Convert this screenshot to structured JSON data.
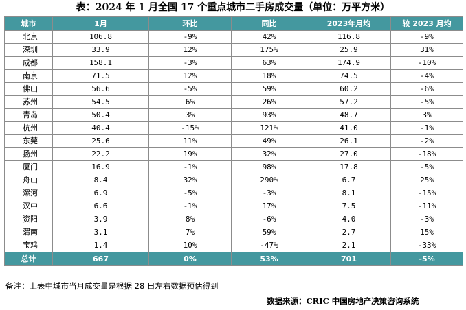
{
  "title": "表：2024 年 1 月全国 17 个重点城市二手房成交量（单位：万平方米）",
  "headers": [
    "城市",
    "1月",
    "环比",
    "同比",
    "2023年月均",
    "较 2023 月均"
  ],
  "rows": [
    [
      "北京",
      "106.8",
      "-9%",
      "42%",
      "116.8",
      "-9%"
    ],
    [
      "深圳",
      "33.9",
      "12%",
      "175%",
      "25.9",
      "31%"
    ],
    [
      "成都",
      "158.1",
      "-3%",
      "63%",
      "174.9",
      "-10%"
    ],
    [
      "南京",
      "71.5",
      "12%",
      "18%",
      "74.5",
      "-4%"
    ],
    [
      "佛山",
      "56.6",
      "-5%",
      "59%",
      "60.2",
      "-6%"
    ],
    [
      "苏州",
      "54.5",
      "6%",
      "26%",
      "57.2",
      "-5%"
    ],
    [
      "青岛",
      "50.4",
      "3%",
      "93%",
      "48.7",
      "3%"
    ],
    [
      "杭州",
      "40.4",
      "-15%",
      "121%",
      "41.0",
      "-1%"
    ],
    [
      "东莞",
      "25.6",
      "11%",
      "49%",
      "26.1",
      "-2%"
    ],
    [
      "扬州",
      "22.2",
      "19%",
      "32%",
      "27.0",
      "-18%"
    ],
    [
      "厦门",
      "16.9",
      "-1%",
      "98%",
      "17.8",
      "-5%"
    ],
    [
      "舟山",
      "8.4",
      "32%",
      "290%",
      "6.7",
      "25%"
    ],
    [
      "漯河",
      "6.9",
      "-5%",
      "-3%",
      "8.1",
      "-15%"
    ],
    [
      "汉中",
      "6.6",
      "-1%",
      "17%",
      "7.5",
      "-11%"
    ],
    [
      "资阳",
      "3.9",
      "8%",
      "-6%",
      "4.0",
      "-3%"
    ],
    [
      "渭南",
      "3.1",
      "7%",
      "59%",
      "2.7",
      "15%"
    ],
    [
      "宝鸡",
      "1.4",
      "10%",
      "-47%",
      "2.1",
      "-33%"
    ]
  ],
  "total": [
    "总计",
    "667",
    "0%",
    "53%",
    "701",
    "-5%"
  ],
  "note": "备注：上表中城市当月成交量是根据 28 日左右数据预估得到",
  "source": "数据来源：CRIC 中国房地产决策咨询系统",
  "colors": {
    "header_bg": "#44989f",
    "header_text": "#ffffff",
    "border": "#8c8c8c"
  }
}
